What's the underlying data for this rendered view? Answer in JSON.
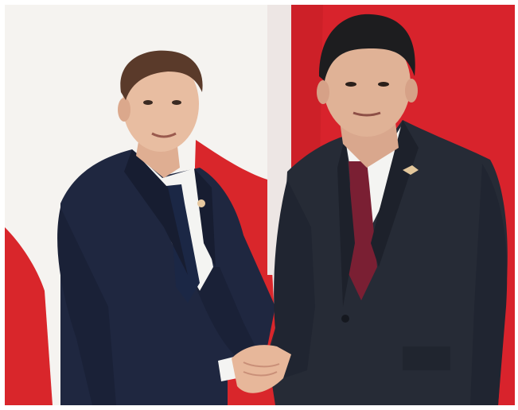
{
  "photo": {
    "subjects": [
      "person-left",
      "person-right"
    ],
    "colors": {
      "flag_red": "#d9262b",
      "flag_white": "#f5f3f0",
      "suit_navy": "#1f2740",
      "suit_dark": "#262b36",
      "shirt_white": "#f4f4f2",
      "tie_navy": "#1b2745",
      "tie_maroon": "#7a1f33",
      "skin": "#e6b99c",
      "hair_brown": "#5a3a2a",
      "hair_black": "#1d1d1f"
    }
  }
}
